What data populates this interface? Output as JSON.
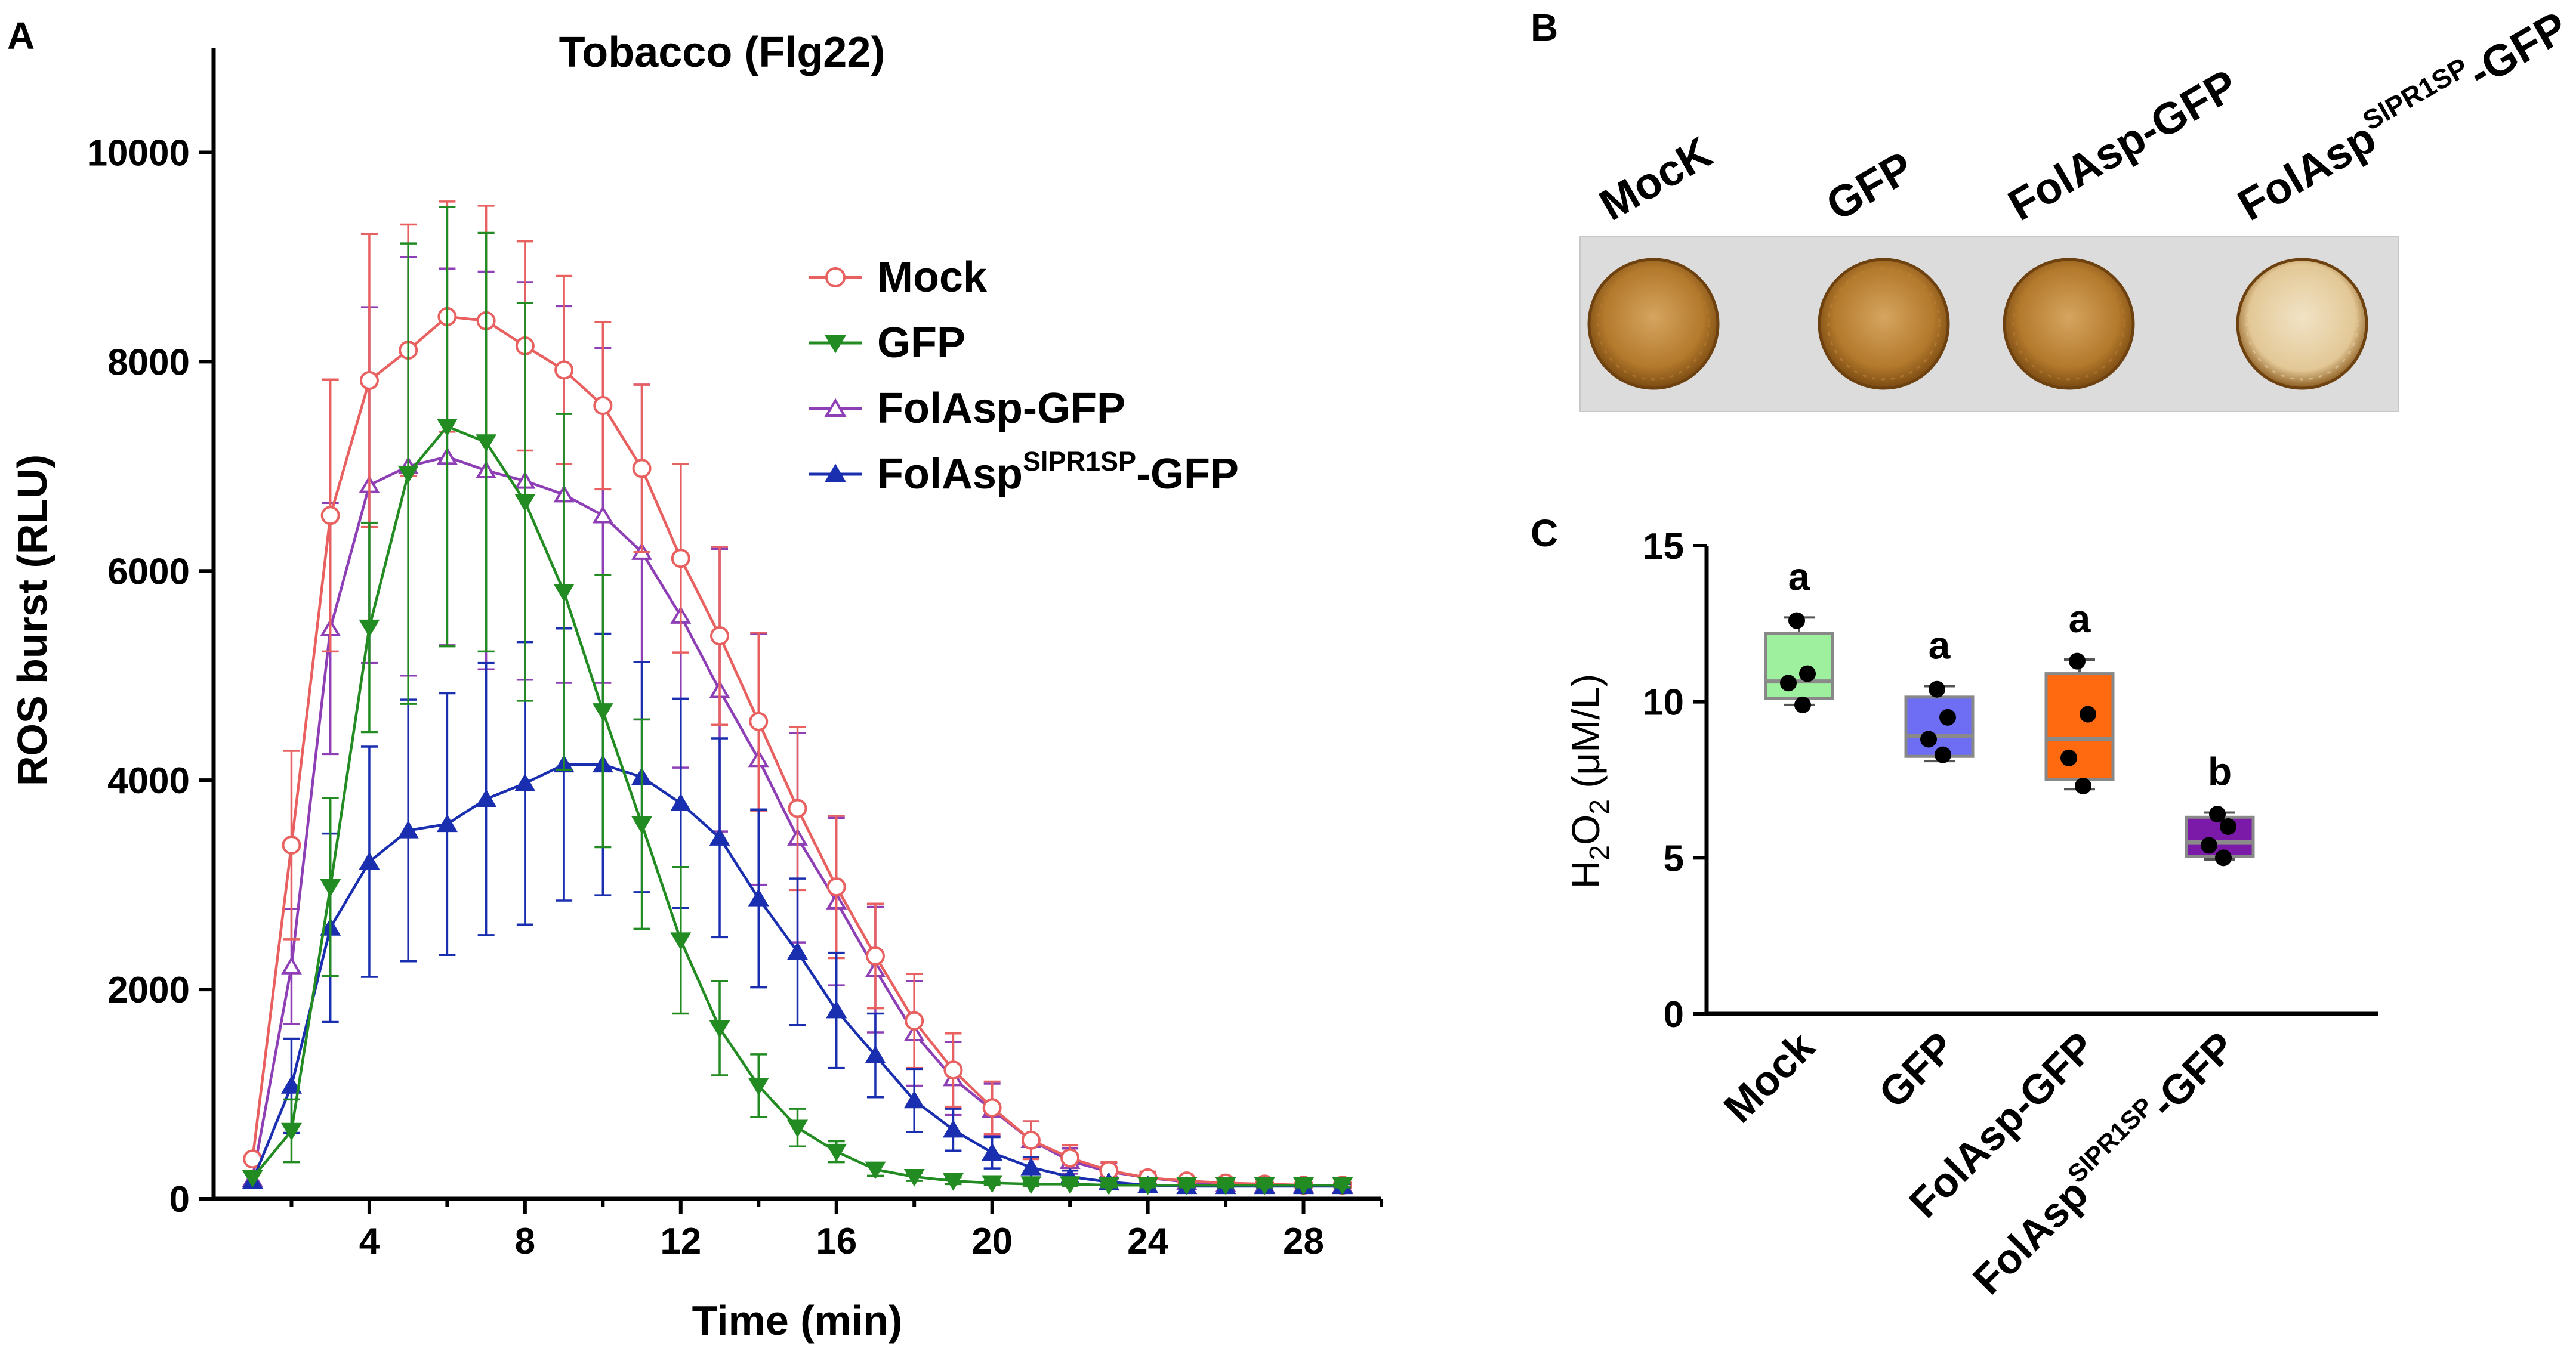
{
  "panels": {
    "a": {
      "letter": "A"
    },
    "b": {
      "letter": "B"
    },
    "c": {
      "letter": "C"
    }
  },
  "chart_data": [
    {
      "type": "line",
      "title": "Tobacco (Flg22)",
      "xlabel": "Time (min)",
      "ylabel": "ROS burst (RLU)",
      "xlim": [
        0,
        30
      ],
      "ylim": [
        0,
        11000
      ],
      "xticks": [
        4,
        8,
        12,
        16,
        20,
        24,
        28
      ],
      "yticks": [
        0,
        2000,
        4000,
        6000,
        8000,
        10000
      ],
      "x": [
        1,
        2,
        3,
        4,
        5,
        6,
        7,
        8,
        9,
        10,
        11,
        12,
        13,
        14,
        15,
        16,
        17,
        18,
        19,
        20,
        21,
        22,
        23,
        24,
        25,
        26,
        27,
        28,
        29
      ],
      "series": [
        {
          "name": "Mock",
          "color": "#e8605f",
          "marker": "circle-open",
          "values": [
            380,
            3380,
            6530,
            7820,
            8110,
            8430,
            8390,
            8150,
            7920,
            7580,
            6980,
            6120,
            5380,
            4560,
            3730,
            2980,
            2320,
            1700,
            1230,
            870,
            560,
            390,
            270,
            200,
            170,
            150,
            140,
            130,
            130
          ],
          "errors": [
            0,
            900,
            1300,
            1400,
            1200,
            1100,
            1100,
            1000,
            900,
            800,
            800,
            900,
            850,
            850,
            780,
            680,
            500,
            450,
            350,
            250,
            180,
            120,
            80,
            60,
            40,
            30,
            30,
            30,
            30
          ]
        },
        {
          "name": "GFP",
          "color": "#228b22",
          "marker": "triangle-down",
          "values": [
            200,
            650,
            2980,
            5460,
            6930,
            7380,
            7230,
            6660,
            5800,
            4660,
            3580,
            2470,
            1630,
            1080,
            680,
            450,
            280,
            210,
            170,
            150,
            140,
            140,
            130,
            130,
            130,
            130,
            130,
            130,
            130
          ],
          "errors": [
            0,
            300,
            850,
            1000,
            2200,
            2100,
            2000,
            1900,
            1700,
            1300,
            1000,
            700,
            450,
            300,
            180,
            100,
            60,
            40,
            30,
            20,
            20,
            20,
            20,
            20,
            20,
            20,
            20,
            20,
            20
          ]
        },
        {
          "name": "FolAsp-GFP",
          "color": "#8f3fb5",
          "marker": "triangle-up-open",
          "values": [
            190,
            2220,
            5450,
            6820,
            7000,
            7090,
            6960,
            6860,
            6730,
            6530,
            6180,
            5570,
            4860,
            4200,
            3450,
            2840,
            2190,
            1580,
            1150,
            850,
            560,
            360,
            260,
            200,
            160,
            140,
            130,
            130,
            130
          ],
          "errors": [
            0,
            550,
            1200,
            1700,
            2000,
            1800,
            1900,
            1900,
            1800,
            1600,
            1600,
            1450,
            1350,
            1200,
            1000,
            800,
            600,
            500,
            350,
            250,
            180,
            120,
            80,
            50,
            40,
            30,
            30,
            30,
            30
          ]
        },
        {
          "name": "FolAsp^SlPR1SP-GFP",
          "color": "#1a2fb0",
          "marker": "triangle-up",
          "values": [
            170,
            1080,
            2590,
            3220,
            3520,
            3580,
            3820,
            3970,
            4150,
            4150,
            4030,
            3780,
            3450,
            2870,
            2360,
            1800,
            1370,
            940,
            660,
            440,
            300,
            210,
            160,
            130,
            120,
            120,
            120,
            120,
            120
          ],
          "errors": [
            0,
            450,
            900,
            1100,
            1250,
            1250,
            1300,
            1350,
            1300,
            1250,
            1100,
            1000,
            950,
            850,
            700,
            550,
            400,
            300,
            200,
            150,
            100,
            60,
            40,
            30,
            20,
            20,
            20,
            20,
            20
          ]
        }
      ],
      "legend": {
        "placement": "top-right",
        "items": [
          {
            "base": "Mock",
            "sup": "",
            "suffix": ""
          },
          {
            "base": "GFP",
            "sup": "",
            "suffix": ""
          },
          {
            "base": "FolAsp-GFP",
            "sup": "",
            "suffix": ""
          },
          {
            "base": "FolAsp",
            "sup": "SlPR1SP",
            "suffix": "-GFP"
          }
        ]
      }
    },
    {
      "type": "box",
      "ylabel": {
        "base": "H",
        "sub1": "2",
        "mid": "O",
        "sub2": "2",
        "rest": " (μM/L)"
      },
      "ylim": [
        0,
        15
      ],
      "yticks": [
        0,
        5,
        10,
        15
      ],
      "categories": [
        {
          "base": "Mock",
          "sup": "",
          "suffix": ""
        },
        {
          "base": "GFP",
          "sup": "",
          "suffix": ""
        },
        {
          "base": "FolAsp-GFP",
          "sup": "",
          "suffix": ""
        },
        {
          "base": "FolAsp",
          "sup": "SlPR1SP",
          "suffix": "-GFP"
        }
      ],
      "boxes": [
        {
          "color": "#9ef09e",
          "min": 9.9,
          "q1": 10.1,
          "median": 10.65,
          "q3": 12.2,
          "max": 12.7,
          "points": [
            12.6,
            10.9,
            10.6,
            9.9
          ],
          "letter": "a"
        },
        {
          "color": "#6e6ef5",
          "min": 8.1,
          "q1": 8.25,
          "median": 8.9,
          "q3": 10.15,
          "max": 10.5,
          "points": [
            10.4,
            9.5,
            8.8,
            8.3
          ],
          "letter": "a"
        },
        {
          "color": "#ff6a10",
          "min": 7.2,
          "q1": 7.5,
          "median": 8.8,
          "q3": 10.9,
          "max": 11.35,
          "points": [
            11.3,
            9.6,
            8.2,
            7.3
          ],
          "letter": "a"
        },
        {
          "color": "#7b1aa8",
          "min": 4.95,
          "q1": 5.05,
          "median": 5.5,
          "q3": 6.3,
          "max": 6.45,
          "points": [
            6.4,
            6.0,
            5.4,
            5.0
          ],
          "letter": "b"
        }
      ]
    }
  ],
  "leaf_assay": {
    "labels": [
      {
        "base": "MocK",
        "sup": "",
        "suffix": ""
      },
      {
        "base": "GFP",
        "sup": "",
        "suffix": ""
      },
      {
        "base": "FolAsp-GFP",
        "sup": "",
        "suffix": ""
      },
      {
        "base": "FolAsp",
        "sup": "SlPR1SP",
        "suffix": "-GFP"
      }
    ],
    "stain": [
      "#b07a2e",
      "#b88237",
      "#b07a2e",
      "#e0c89a"
    ]
  }
}
